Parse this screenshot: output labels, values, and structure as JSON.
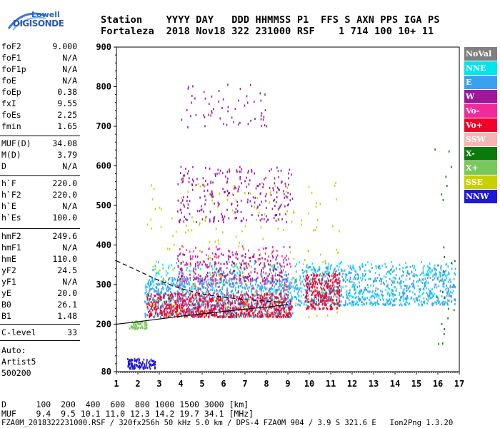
{
  "logo": {
    "line1": "Lowell",
    "line2": "DIGISONDE"
  },
  "header": {
    "row1": "Station    YYYY DAY   DDD HHMMSS P1  FFS S AXN PPS IGA PS",
    "row2": "Fortaleza  2018 Nov18 322 231000 RSF    1 714 100 10+ 11"
  },
  "params": {
    "group1": [
      {
        "label": "foF2",
        "value": "9.000"
      },
      {
        "label": "foF1",
        "value": "N/A"
      },
      {
        "label": "foF1p",
        "value": "N/A"
      },
      {
        "label": "foE",
        "value": "N/A"
      },
      {
        "label": "foEp",
        "value": "0.38"
      },
      {
        "label": "fxI",
        "value": "9.55"
      },
      {
        "label": "foEs",
        "value": "2.25"
      },
      {
        "label": "fmin",
        "value": "1.65"
      }
    ],
    "group2": [
      {
        "label": "MUF(D)",
        "value": "34.08"
      },
      {
        "label": "M(D)",
        "value": "3.79"
      },
      {
        "label": "D",
        "value": "N/A"
      }
    ],
    "group3": [
      {
        "label": "h`F",
        "value": "220.0"
      },
      {
        "label": "h`F2",
        "value": "220.0"
      },
      {
        "label": "h`E",
        "value": "N/A"
      },
      {
        "label": "h`Es",
        "value": "100.0"
      }
    ],
    "group4": [
      {
        "label": "hmF2",
        "value": "249.6"
      },
      {
        "label": "hmF1",
        "value": "N/A"
      },
      {
        "label": "hmE",
        "value": "110.0"
      },
      {
        "label": "yF2",
        "value": "24.5"
      },
      {
        "label": "yF1",
        "value": "N/A"
      },
      {
        "label": "yE",
        "value": "20.0"
      },
      {
        "label": "B0",
        "value": "26.1"
      },
      {
        "label": "B1",
        "value": "1.48"
      }
    ],
    "clevel": {
      "label": "C-level",
      "value": "33"
    },
    "auto": {
      "line1": "Auto:",
      "line2": "Artist5",
      "line3": "500200"
    }
  },
  "legend": [
    {
      "label": "NoVal",
      "color": "#808080"
    },
    {
      "label": "NNE",
      "color": "#00e5ee"
    },
    {
      "label": "E",
      "color": "#3ca0f0"
    },
    {
      "label": "W",
      "color": "#a0189a"
    },
    {
      "label": "Vo-",
      "color": "#f02a9a"
    },
    {
      "label": "Vo+",
      "color": "#f0002a"
    },
    {
      "label": "SSW",
      "color": "#f6b4b4"
    },
    {
      "label": "X-",
      "color": "#0a7a0a"
    },
    {
      "label": "X+",
      "color": "#78c85a"
    },
    {
      "label": "SSE",
      "color": "#c8d000"
    },
    {
      "label": "NNW",
      "color": "#2018d8"
    }
  ],
  "chart_data": {
    "type": "scatter",
    "title": "",
    "xlabel": "",
    "ylabel": "",
    "xlim": [
      1,
      17
    ],
    "ylim": [
      80,
      900
    ],
    "x_ticks": [
      "1",
      "2",
      "3",
      "4",
      "5",
      "6",
      "7",
      "8",
      "9",
      "10",
      "11",
      "12",
      "13",
      "14",
      "15",
      "16",
      "17"
    ],
    "y_ticks": [
      "80",
      "200",
      "300",
      "400",
      "500",
      "600",
      "700",
      "800",
      "900"
    ],
    "clusters": [
      {
        "name": "NNE",
        "color": "#00e5ee",
        "x": [
          2.3,
          16.8
        ],
        "y": [
          250,
          360
        ],
        "density": 700
      },
      {
        "name": "E",
        "color": "#3ca0f0",
        "x": [
          2.3,
          9.2
        ],
        "y": [
          220,
          320
        ],
        "density": 900
      },
      {
        "name": "E",
        "color": "#3ca0f0",
        "x": [
          9.3,
          16.8
        ],
        "y": [
          250,
          350
        ],
        "density": 600
      },
      {
        "name": "W",
        "color": "#a0189a",
        "x": [
          3.8,
          9.2
        ],
        "y": [
          460,
          600
        ],
        "density": 260
      },
      {
        "name": "W",
        "color": "#a0189a",
        "x": [
          3.8,
          9.0
        ],
        "y": [
          310,
          380
        ],
        "density": 220
      },
      {
        "name": "W",
        "color": "#a0189a",
        "x": [
          4.0,
          8.0
        ],
        "y": [
          700,
          810
        ],
        "density": 60
      },
      {
        "name": "Vo-",
        "color": "#f02a9a",
        "x": [
          3.8,
          9.2
        ],
        "y": [
          240,
          400
        ],
        "density": 260
      },
      {
        "name": "Vo+",
        "color": "#f0002a",
        "x": [
          2.4,
          9.2
        ],
        "y": [
          220,
          280
        ],
        "density": 700
      },
      {
        "name": "Vo+",
        "color": "#f0002a",
        "x": [
          9.8,
          11.4
        ],
        "y": [
          240,
          330
        ],
        "density": 260
      },
      {
        "name": "SSE",
        "color": "#c8d000",
        "x": [
          2.4,
          11.4
        ],
        "y": [
          220,
          560
        ],
        "density": 200
      },
      {
        "name": "NNW",
        "color": "#2018d8",
        "x": [
          1.5,
          2.8
        ],
        "y": [
          90,
          115
        ],
        "density": 120
      },
      {
        "name": "X+",
        "color": "#78c85a",
        "x": [
          1.6,
          2.4
        ],
        "y": [
          190,
          210
        ],
        "density": 60
      },
      {
        "name": "X-",
        "color": "#0a7a0a",
        "x": [
          15.8,
          16.8
        ],
        "y": [
          150,
          690
        ],
        "density": 25
      }
    ],
    "profile_solid": [
      [
        1.0,
        200
      ],
      [
        2.0,
        206
      ],
      [
        3.0,
        213
      ],
      [
        4.0,
        220
      ],
      [
        5.0,
        226
      ],
      [
        6.0,
        232
      ],
      [
        7.0,
        238
      ],
      [
        8.0,
        243
      ],
      [
        9.0,
        249.6
      ]
    ],
    "profile_dashed": [
      [
        1.0,
        360
      ],
      [
        2.0,
        335
      ],
      [
        3.0,
        310
      ],
      [
        4.0,
        290
      ],
      [
        5.0,
        276
      ],
      [
        6.0,
        268
      ],
      [
        7.0,
        262
      ],
      [
        8.0,
        258
      ],
      [
        9.0,
        255
      ]
    ]
  },
  "footer": {
    "d_row": "D      100  200  400  600  800 1000 1500 3000 [km]",
    "muf_row": "MUF    9.4  9.5 10.1 11.0 12.3 14.2 19.7 34.1 [MHz]",
    "info_row": "FZA0M_2018322231000.RSF / 320fx256h 50 kHz 5.0 km / DPS-4 FZA0M 904 / 3.9 S 321.6 E   Ion2Png 1.3.20"
  }
}
